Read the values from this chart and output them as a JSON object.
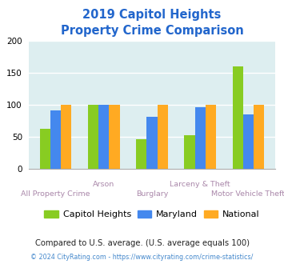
{
  "title_line1": "2019 Capitol Heights",
  "title_line2": "Property Crime Comparison",
  "categories": [
    "All Property Crime",
    "Arson",
    "Burglary",
    "Larceny & Theft",
    "Motor Vehicle Theft"
  ],
  "capitol_heights": [
    63,
    100,
    46,
    53,
    160
  ],
  "maryland": [
    92,
    100,
    82,
    96,
    85
  ],
  "national": [
    100,
    100,
    100,
    100,
    100
  ],
  "color_capitol": "#88cc22",
  "color_maryland": "#4488ee",
  "color_national": "#ffaa22",
  "ylim": [
    0,
    200
  ],
  "yticks": [
    0,
    50,
    100,
    150,
    200
  ],
  "title_color": "#2266cc",
  "xlabel_color": "#aa88aa",
  "legend_labels": [
    "Capitol Heights",
    "Maryland",
    "National"
  ],
  "footnote1": "Compared to U.S. average. (U.S. average equals 100)",
  "footnote2": "© 2024 CityRating.com - https://www.cityrating.com/crime-statistics/",
  "footnote1_color": "#222222",
  "footnote2_color": "#4488cc",
  "bg_color": "#ddeef0",
  "bar_width": 0.22
}
